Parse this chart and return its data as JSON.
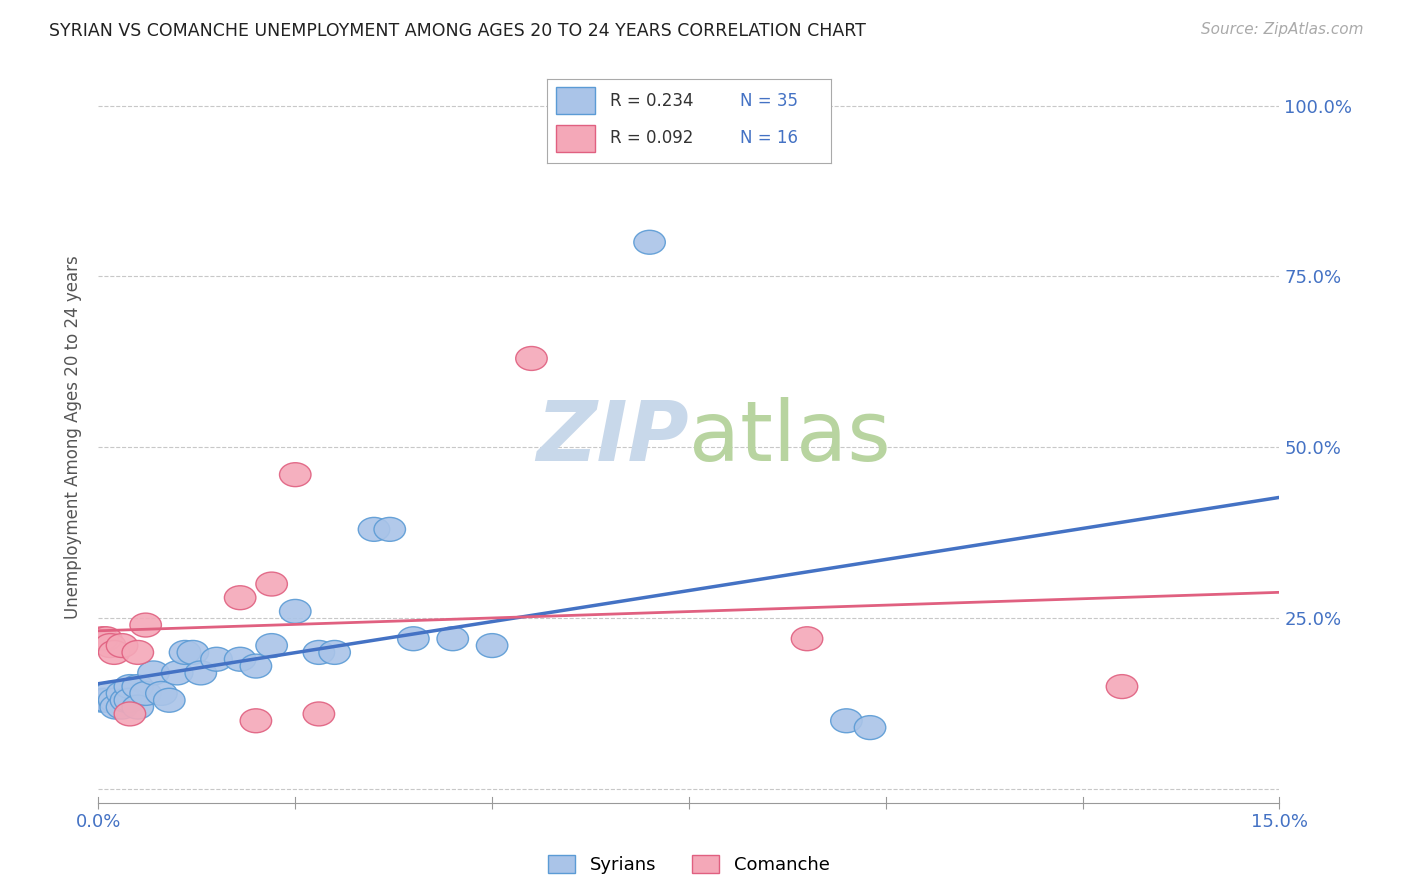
{
  "title": "SYRIAN VS COMANCHE UNEMPLOYMENT AMONG AGES 20 TO 24 YEARS CORRELATION CHART",
  "source": "Source: ZipAtlas.com",
  "ylabel": "Unemployment Among Ages 20 to 24 years",
  "xlim": [
    0.0,
    0.15
  ],
  "ylim": [
    -0.02,
    1.05
  ],
  "xticks": [
    0.0,
    0.025,
    0.05,
    0.075,
    0.1,
    0.125,
    0.15
  ],
  "xtick_labels": [
    "0.0%",
    "",
    "",
    "",
    "",
    "",
    "15.0%"
  ],
  "yticks": [
    0.0,
    0.25,
    0.5,
    0.75,
    1.0
  ],
  "ytick_labels_right": [
    "",
    "25.0%",
    "50.0%",
    "75.0%",
    "100.0%"
  ],
  "background_color": "#ffffff",
  "grid_color": "#c8c8c8",
  "syrians_color": "#aac4e8",
  "comanche_color": "#f4a8b8",
  "syrians_edge_color": "#5b9bd5",
  "comanche_edge_color": "#e06080",
  "syrians_line_color": "#4472c4",
  "comanche_line_color": "#e06080",
  "legend_r_syrian": "R = 0.234",
  "legend_n_syrian": "N = 35",
  "legend_r_comanche": "R = 0.092",
  "legend_n_comanche": "N = 16",
  "syrians_x": [
    0.0005,
    0.001,
    0.0015,
    0.002,
    0.0022,
    0.003,
    0.003,
    0.0035,
    0.004,
    0.004,
    0.005,
    0.005,
    0.006,
    0.007,
    0.008,
    0.009,
    0.01,
    0.011,
    0.012,
    0.013,
    0.015,
    0.018,
    0.02,
    0.022,
    0.025,
    0.028,
    0.03,
    0.035,
    0.037,
    0.04,
    0.045,
    0.05,
    0.07,
    0.095,
    0.098
  ],
  "syrians_y": [
    0.13,
    0.13,
    0.14,
    0.13,
    0.12,
    0.14,
    0.12,
    0.13,
    0.15,
    0.13,
    0.15,
    0.12,
    0.14,
    0.17,
    0.14,
    0.13,
    0.17,
    0.2,
    0.2,
    0.17,
    0.19,
    0.19,
    0.18,
    0.21,
    0.26,
    0.2,
    0.2,
    0.38,
    0.38,
    0.22,
    0.22,
    0.21,
    0.8,
    0.1,
    0.09
  ],
  "comanche_x": [
    0.0005,
    0.001,
    0.0015,
    0.002,
    0.003,
    0.004,
    0.005,
    0.006,
    0.018,
    0.02,
    0.022,
    0.025,
    0.028,
    0.055,
    0.09,
    0.13
  ],
  "comanche_y": [
    0.22,
    0.22,
    0.21,
    0.2,
    0.21,
    0.11,
    0.2,
    0.24,
    0.28,
    0.1,
    0.3,
    0.46,
    0.11,
    0.63,
    0.22,
    0.15
  ],
  "watermark_zip": "ZIP",
  "watermark_atlas": "atlas",
  "watermark_color_zip": "#c5d5e8",
  "watermark_color_atlas": "#c8d8b0"
}
